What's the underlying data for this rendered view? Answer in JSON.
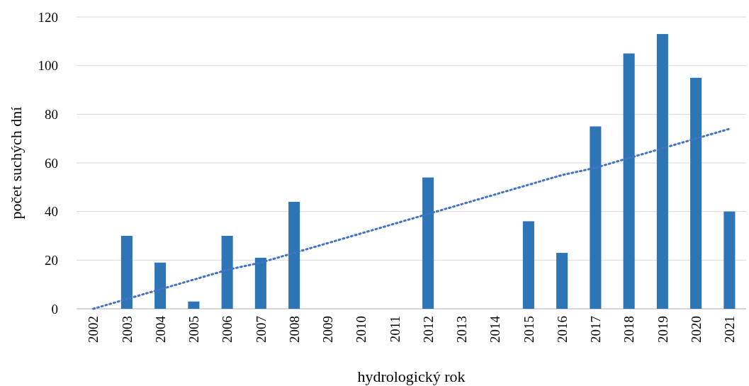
{
  "chart_data": {
    "type": "bar",
    "xlabel": "hydrologický rok",
    "ylabel": "počet suchých dní",
    "categories": [
      "2002",
      "2003",
      "2004",
      "2005",
      "2006",
      "2007",
      "2008",
      "2009",
      "2010",
      "2011",
      "2012",
      "2013",
      "2014",
      "2015",
      "2016",
      "2017",
      "2018",
      "2019",
      "2020",
      "2021"
    ],
    "series": [
      {
        "color": "#2e75b6",
        "values": [
          0,
          30,
          19,
          3,
          30,
          21,
          44,
          0,
          0,
          0,
          54,
          0,
          0,
          36,
          23,
          75,
          105,
          113,
          95,
          40
        ]
      },
      {
        "type": "line",
        "color": "#4472c4",
        "values": [
          0,
          4,
          8,
          12,
          16,
          19,
          23,
          27,
          31,
          35,
          39,
          43,
          47,
          51,
          55,
          58,
          62,
          66,
          70,
          74
        ],
        "line_style": "dotted",
        "marker": "none"
      }
    ],
    "ylim": [
      0,
      120
    ],
    "yticks": [
      0,
      20,
      40,
      60,
      80,
      100,
      120
    ],
    "grid": "y"
  }
}
